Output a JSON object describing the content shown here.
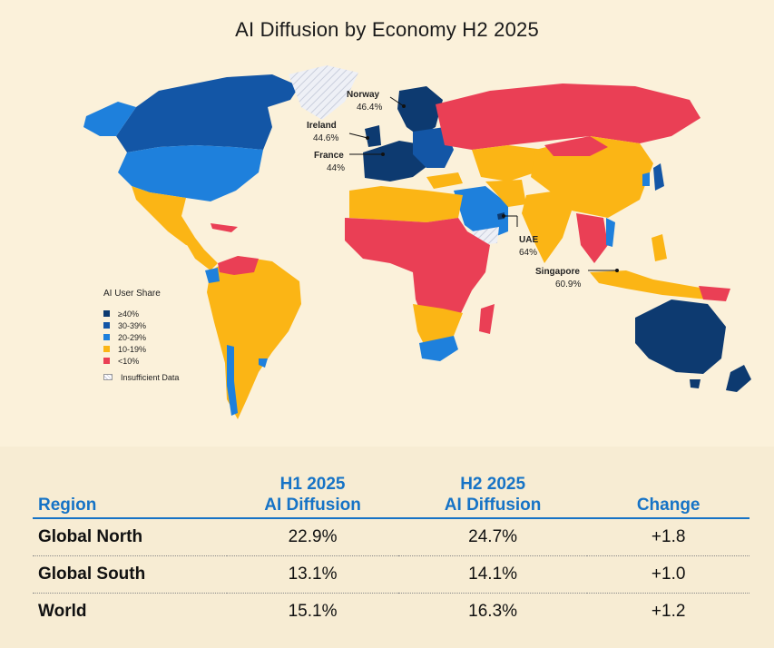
{
  "title": "AI Diffusion by Economy H2 2025",
  "colors": {
    "ge40": "#0d3a70",
    "p30_39": "#1356a6",
    "p20_29": "#1e80dc",
    "p10_19": "#fbb515",
    "lt10": "#ea3f55",
    "insufficient": "#dfe3ee",
    "accent": "#1673c6"
  },
  "legend": {
    "title": "AI User Share",
    "items": [
      {
        "label": "≥40%",
        "color": "#0d3a70"
      },
      {
        "label": "30-39%",
        "color": "#1356a6"
      },
      {
        "label": "20-29%",
        "color": "#1e80dc"
      },
      {
        "label": "10-19%",
        "color": "#fbb515"
      },
      {
        "label": "<10%",
        "color": "#ea3f55"
      }
    ],
    "insufficient": "Insufficient Data"
  },
  "callouts": [
    {
      "name": "Norway",
      "value": "46.4%"
    },
    {
      "name": "Ireland",
      "value": "44.6%"
    },
    {
      "name": "France",
      "value": "44%"
    },
    {
      "name": "UAE",
      "value": "64%"
    },
    {
      "name": "Singapore",
      "value": "60.9%"
    }
  ],
  "table": {
    "headers": {
      "region": "Region",
      "h1_line1": "H1 2025",
      "h1_line2": "AI Diffusion",
      "h2_line1": "H2 2025",
      "h2_line2": "AI Diffusion",
      "change": "Change"
    },
    "rows": [
      {
        "region": "Global North",
        "h1": "22.9%",
        "h2": "24.7%",
        "change": "+1.8"
      },
      {
        "region": "Global South",
        "h1": "13.1%",
        "h2": "14.1%",
        "change": "+1.0"
      },
      {
        "region": "World",
        "h1": "15.1%",
        "h2": "16.3%",
        "change": "+1.2"
      }
    ]
  }
}
